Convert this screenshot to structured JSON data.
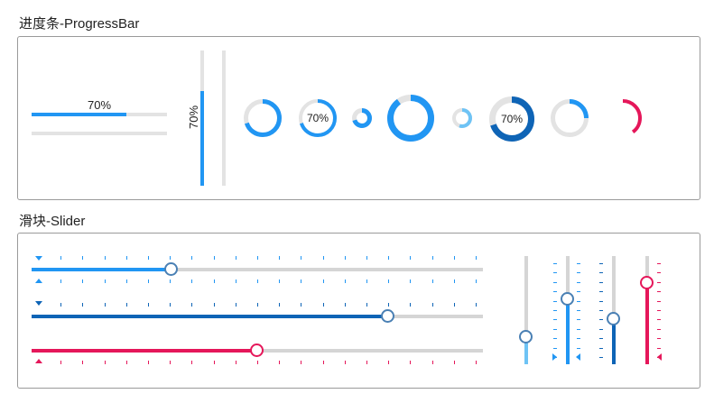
{
  "sections": {
    "progress_title": "进度条-ProgressBar",
    "slider_title": "滑块-Slider"
  },
  "colors": {
    "blue": "#2196f3",
    "dark_blue": "#0e64b6",
    "light_blue": "#6ec3f5",
    "pink": "#e5175a",
    "track": "#e3e3e3"
  },
  "progress": {
    "horizontal": [
      {
        "value": 0.7,
        "label": "70%",
        "show_label": true
      },
      {
        "value": 0.0,
        "label": "",
        "show_label": false
      }
    ],
    "vertical": [
      {
        "value": 0.7,
        "label": "70%",
        "show_label": true
      },
      {
        "value": 0.0,
        "label": "",
        "show_label": false
      }
    ],
    "rings": [
      {
        "value": 0.7,
        "label": "",
        "color": "#2196f3",
        "track": true
      },
      {
        "value": 0.7,
        "label": "70%",
        "color": "#2196f3",
        "track": true
      },
      {
        "value": 0.7,
        "label": "",
        "color": "#2196f3",
        "track": true
      },
      {
        "value": 0.9,
        "label": "",
        "color": "#2196f3",
        "track": true
      },
      {
        "value": 0.55,
        "label": "",
        "color": "#6ec3f5",
        "track": true
      },
      {
        "value": 0.7,
        "label": "70%",
        "color": "#0e64b6",
        "track": true
      },
      {
        "value": 0.25,
        "label": "",
        "color": "#2196f3",
        "track": true
      },
      {
        "value": 0.4,
        "label": "",
        "color": "#e5175a",
        "track": false
      }
    ]
  },
  "sliders": {
    "horizontal": [
      {
        "value": 0.31,
        "color": "#2196f3",
        "ticks_top": true,
        "ticks_bottom": true,
        "marker": "both"
      },
      {
        "value": 0.79,
        "color": "#0e64b6",
        "ticks_top": true,
        "ticks_bottom": false,
        "marker": "top"
      },
      {
        "value": 0.5,
        "color": "#e5175a",
        "ticks_top": false,
        "ticks_bottom": true,
        "marker": "bottom"
      }
    ],
    "vertical": [
      {
        "value": 0.25,
        "color": "#6ec3f5",
        "ticks": false,
        "marker": "none"
      },
      {
        "value": 0.6,
        "color": "#2196f3",
        "ticks": true,
        "marker": "both"
      },
      {
        "value": 0.42,
        "color": "#0e64b6",
        "ticks": true,
        "marker": "none"
      },
      {
        "value": 0.75,
        "color": "#e5175a",
        "ticks": true,
        "marker": "right"
      }
    ]
  }
}
